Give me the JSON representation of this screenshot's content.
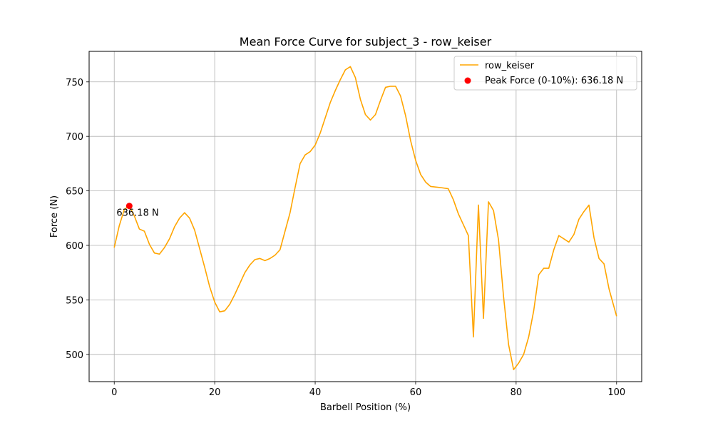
{
  "chart_data": {
    "type": "line",
    "title": "Mean Force Curve for subject_3 - row_keiser",
    "xlabel": "Barbell Position (%)",
    "ylabel": "Force (N)",
    "xlim": [
      -5,
      105
    ],
    "ylim": [
      475,
      778
    ],
    "x_ticks": [
      0,
      20,
      40,
      60,
      80,
      100
    ],
    "y_ticks": [
      500,
      550,
      600,
      650,
      700,
      750
    ],
    "grid": true,
    "legend_position": "top-right",
    "series": [
      {
        "name": "row_keiser",
        "color": "#FFA500",
        "points": [
          [
            0,
            598
          ],
          [
            1,
            618
          ],
          [
            2,
            633
          ],
          [
            3,
            636.18
          ],
          [
            4,
            627
          ],
          [
            5,
            615
          ],
          [
            6,
            613
          ],
          [
            7,
            601
          ],
          [
            8,
            593
          ],
          [
            9,
            592
          ],
          [
            10,
            598
          ],
          [
            11,
            606
          ],
          [
            12,
            617
          ],
          [
            13,
            625
          ],
          [
            14,
            630
          ],
          [
            15,
            625
          ],
          [
            16,
            614
          ],
          [
            17,
            597
          ],
          [
            18,
            580
          ],
          [
            19,
            562
          ],
          [
            20,
            548
          ],
          [
            21,
            539
          ],
          [
            22,
            540
          ],
          [
            23,
            546
          ],
          [
            24,
            555
          ],
          [
            25,
            565
          ],
          [
            26,
            575
          ],
          [
            27,
            582
          ],
          [
            28,
            587
          ],
          [
            29,
            588
          ],
          [
            30,
            586
          ],
          [
            31,
            588
          ],
          [
            32,
            591
          ],
          [
            33,
            596
          ],
          [
            34,
            613
          ],
          [
            35,
            630
          ],
          [
            36,
            653
          ],
          [
            37,
            675
          ],
          [
            38,
            683
          ],
          [
            39,
            686
          ],
          [
            40,
            692
          ],
          [
            41,
            703
          ],
          [
            42,
            717
          ],
          [
            43,
            731
          ],
          [
            44,
            742
          ],
          [
            45,
            752
          ],
          [
            46,
            761
          ],
          [
            47,
            764
          ],
          [
            48,
            754
          ],
          [
            49,
            734
          ],
          [
            50,
            720
          ],
          [
            51,
            715
          ],
          [
            52,
            720
          ],
          [
            53,
            733
          ],
          [
            54,
            745
          ],
          [
            55,
            746
          ],
          [
            56,
            746
          ],
          [
            57,
            737
          ],
          [
            58,
            719
          ],
          [
            59,
            696
          ],
          [
            60,
            678
          ],
          [
            61,
            665
          ],
          [
            62,
            658
          ],
          [
            63,
            654
          ],
          [
            65,
            653
          ],
          [
            66.5,
            652
          ],
          [
            67.5,
            642
          ],
          [
            68.5,
            629
          ],
          [
            69.5,
            619
          ],
          [
            70.5,
            609
          ],
          [
            71.5,
            516
          ],
          [
            72.5,
            637
          ],
          [
            73.5,
            533
          ],
          [
            74.5,
            640
          ],
          [
            75.5,
            632
          ],
          [
            76.5,
            605
          ],
          [
            77.5,
            553
          ],
          [
            78.5,
            509
          ],
          [
            79.5,
            486
          ],
          [
            80.5,
            492
          ],
          [
            81.5,
            500
          ],
          [
            82.5,
            516
          ],
          [
            83.5,
            540
          ],
          [
            84.5,
            573
          ],
          [
            85.5,
            579
          ],
          [
            86.5,
            579
          ],
          [
            87.5,
            596
          ],
          [
            88.5,
            609
          ],
          [
            89.5,
            606
          ],
          [
            90.5,
            603
          ],
          [
            91.5,
            610
          ],
          [
            92.5,
            624
          ],
          [
            93.5,
            631
          ],
          [
            94.5,
            637
          ],
          [
            95.5,
            607
          ],
          [
            96.5,
            588
          ],
          [
            97.5,
            583
          ],
          [
            98.5,
            560
          ],
          [
            100,
            535
          ]
        ]
      }
    ],
    "peak": {
      "label": "Peak Force (0-10%): 636.18 N",
      "annotation": "636.18 N",
      "x": 3,
      "y": 636.18,
      "color": "#FF0000"
    }
  }
}
